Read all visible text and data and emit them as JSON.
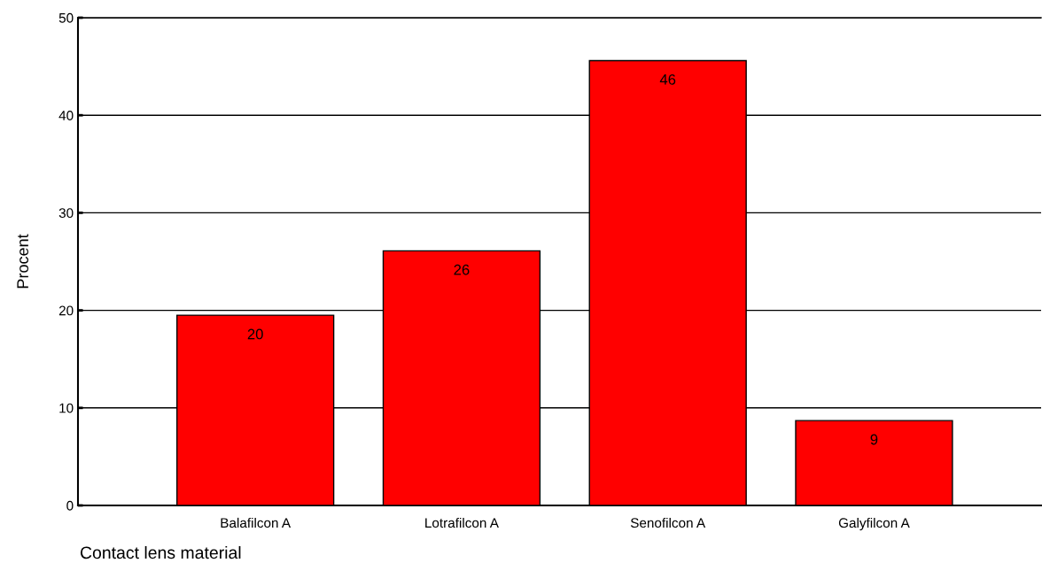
{
  "chart_data": {
    "type": "bar",
    "xlabel": "Contact lens material",
    "ylabel": "Procent",
    "categories": [
      "Balafilcon A",
      "Lotrafilcon A",
      "Senofilcon A",
      "Galyfilcon A"
    ],
    "values": [
      19.5,
      26.1,
      45.6,
      8.7
    ],
    "value_labels": [
      "20",
      "26",
      "46",
      "9"
    ],
    "color": "#ff0000",
    "ylim": [
      0,
      50
    ],
    "yticks": [
      0,
      10,
      20,
      30,
      40,
      50
    ],
    "grid": "y",
    "legend": false
  }
}
